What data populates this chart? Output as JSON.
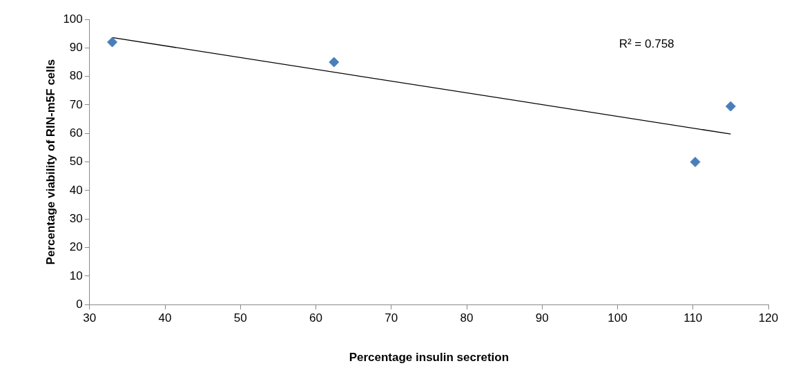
{
  "chart_data": {
    "type": "scatter",
    "xlabel": "Percentage insulin secretion",
    "ylabel": "Percentage viability of RIN-m5F cells",
    "xlim": [
      30,
      120
    ],
    "xticks": [
      30,
      40,
      50,
      60,
      70,
      80,
      90,
      100,
      110,
      120
    ],
    "ylim": [
      0,
      100
    ],
    "yticks": [
      0,
      10,
      20,
      30,
      40,
      50,
      60,
      70,
      80,
      90,
      100
    ],
    "grid": false,
    "legend": false,
    "marker": "diamond",
    "annotations": [
      "R² = 0.758"
    ],
    "series": [
      {
        "type": "scatter",
        "color": "#4a7ebb",
        "x": [
          33,
          62.4,
          110.3,
          115
        ],
        "values": [
          92,
          85,
          50,
          69.5
        ]
      },
      {
        "type": "line",
        "color": "#000000",
        "marker": "none",
        "x": [
          33,
          115
        ],
        "values": [
          93.6,
          59.8
        ]
      }
    ]
  }
}
